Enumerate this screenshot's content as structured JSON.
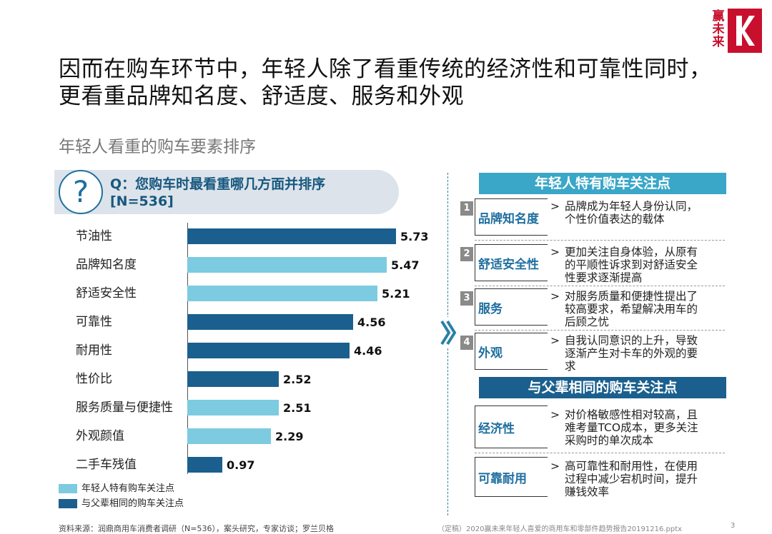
{
  "logo": {
    "text": "赢未来",
    "brand_color": "#c8102e"
  },
  "title": {
    "line1": "因而在购车环节中，年轻人除了看重传统的经济性和可靠性同时，",
    "line2": "更看重品牌知名度、舒适度、服务和外观"
  },
  "subtitle": "年轻人看重的购车要素排序",
  "question": {
    "icon": "question-icon",
    "line1": "Q：您购车时最看重哪几方面并排序",
    "line2": "[N=536]"
  },
  "colors": {
    "light": "#7ccbe0",
    "dark": "#1b5f8e",
    "header_light": "#3aa6c8",
    "header_dark": "#1b5f8e"
  },
  "chart_data": {
    "type": "bar",
    "orientation": "horizontal",
    "categories": [
      "节油性",
      "品牌知名度",
      "舒适安全性",
      "可靠性",
      "耐用性",
      "性价比",
      "服务质量与便捷性",
      "外观颜值",
      "二手车残值"
    ],
    "values": [
      5.73,
      5.47,
      5.21,
      4.56,
      4.46,
      2.52,
      2.51,
      2.29,
      0.97
    ],
    "value_labels": [
      "5.73",
      "5.47",
      "5.21",
      "4.56",
      "4.46",
      "2.52",
      "2.51",
      "2.29",
      "0.97"
    ],
    "group": [
      "dark",
      "light",
      "light",
      "dark",
      "dark",
      "dark",
      "light",
      "light",
      "dark"
    ],
    "series": [
      {
        "name": "年轻人特有购车关注点",
        "color": "#7ccbe0"
      },
      {
        "name": "与父辈相同的购车关注点",
        "color": "#1b5f8e"
      }
    ],
    "xlim": [
      0,
      5.73
    ]
  },
  "right_panel": {
    "header1": "年轻人特有购车关注点",
    "items": [
      {
        "num": "1",
        "name": "品牌知名度",
        "desc": [
          "品牌成为年轻人身份认同，",
          "个性价值表达的载体"
        ]
      },
      {
        "num": "2",
        "name": "舒适安全性",
        "desc": [
          "更加关注自身体验，从原有",
          "的平顺性诉求到对舒适安全",
          "性要求逐渐提高"
        ]
      },
      {
        "num": "3",
        "name": "服务",
        "desc": [
          "对服务质量和便捷性提出了",
          "较高要求，希望解决用车的",
          "后顾之忧"
        ]
      },
      {
        "num": "4",
        "name": "外观",
        "desc": [
          "自我认同意识的上升，导致",
          "逐渐产生对卡车的外观的要",
          "求"
        ]
      }
    ],
    "header2": "与父辈相同的购车关注点",
    "items2": [
      {
        "name": "经济性",
        "desc": [
          "对价格敏感性相对较高，且",
          "难考量TCO成本，更多关注",
          "采购时的单次成本"
        ]
      },
      {
        "name": "可靠耐用",
        "desc": [
          "高可靠性和耐用性，在使用",
          "过程中减少宕机时间，提升",
          "赚钱效率"
        ]
      }
    ],
    "bullet": ">"
  },
  "source": "资料来源：润鼎商用车消费者调研（N=536），案头研究，专家访谈；罗兰贝格",
  "footer": "（定稿）2020赢未来年轻人喜爱的商用车和零部件趋势报告20191216.pptx",
  "page_number": "3"
}
